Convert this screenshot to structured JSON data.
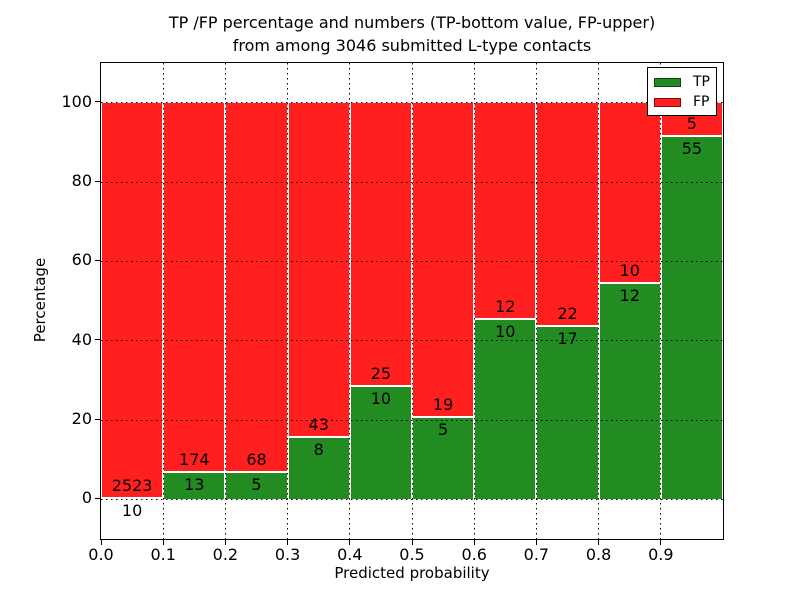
{
  "chart_data": {
    "type": "bar",
    "stacked": true,
    "normalized": "percent",
    "title": "TP /FP percentage and numbers (TP-bottom value, FP-upper)",
    "subtitle": "from among 3046 submitted L-type contacts",
    "xlabel": "Predicted probability",
    "ylabel": "Percentage",
    "total_contacts": 3046,
    "bar_x_start": [
      0.0,
      0.1,
      0.2,
      0.3,
      0.4,
      0.5,
      0.6,
      0.7,
      0.8,
      0.9
    ],
    "bar_width": 0.1,
    "x_tick_labels": [
      "0.0",
      "0.1",
      "0.2",
      "0.3",
      "0.4",
      "0.5",
      "0.6",
      "0.7",
      "0.8",
      "0.9"
    ],
    "y_ticks": [
      0,
      20,
      40,
      60,
      80,
      100
    ],
    "y_tick_labels": [
      "0",
      "20",
      "40",
      "60",
      "80",
      "100"
    ],
    "xlim": [
      0,
      1
    ],
    "ylim": [
      -10,
      110
    ],
    "grid": {
      "style": "dotted",
      "color": "#000000"
    },
    "series": [
      {
        "name": "TP",
        "color": "#228B22",
        "counts": [
          10,
          13,
          5,
          8,
          10,
          5,
          10,
          17,
          12,
          55
        ]
      },
      {
        "name": "FP",
        "color": "#FF1F1F",
        "counts": [
          2523,
          174,
          68,
          43,
          25,
          19,
          12,
          22,
          10,
          5
        ]
      }
    ],
    "tp_percent_of_bin": [
      0.39,
      6.95,
      6.85,
      15.69,
      28.57,
      20.83,
      45.45,
      43.59,
      54.55,
      91.67
    ],
    "legend": {
      "position": "upper right",
      "entries": [
        {
          "label": "TP",
          "color": "#228B22"
        },
        {
          "label": "FP",
          "color": "#FF1F1F"
        }
      ]
    }
  }
}
